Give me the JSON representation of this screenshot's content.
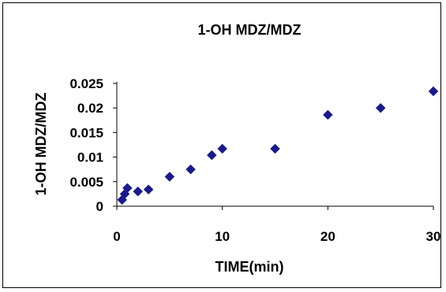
{
  "chart_data": {
    "type": "scatter",
    "title": "1-OH MDZ/MDZ",
    "xlabel": "TIME(min)",
    "ylabel": "1-OH MDZ/MDZ",
    "xlim": [
      0,
      30
    ],
    "ylim": [
      0,
      0.025
    ],
    "x_ticks": [
      "0",
      "10",
      "20",
      "30"
    ],
    "y_ticks": [
      "0",
      "0.005",
      "0.01",
      "0.015",
      "0.02",
      "0.025"
    ],
    "grid": false,
    "marker": "diamond",
    "marker_color": "#1a1a8c",
    "points": [
      {
        "x": 0.5,
        "y": 0.0013
      },
      {
        "x": 0.75,
        "y": 0.0025
      },
      {
        "x": 1,
        "y": 0.0037
      },
      {
        "x": 2,
        "y": 0.003
      },
      {
        "x": 3,
        "y": 0.0034
      },
      {
        "x": 5,
        "y": 0.006
      },
      {
        "x": 7,
        "y": 0.0075
      },
      {
        "x": 9,
        "y": 0.0104
      },
      {
        "x": 10,
        "y": 0.0117
      },
      {
        "x": 15,
        "y": 0.0117
      },
      {
        "x": 20,
        "y": 0.0186
      },
      {
        "x": 25,
        "y": 0.02
      },
      {
        "x": 30,
        "y": 0.0234
      }
    ]
  }
}
